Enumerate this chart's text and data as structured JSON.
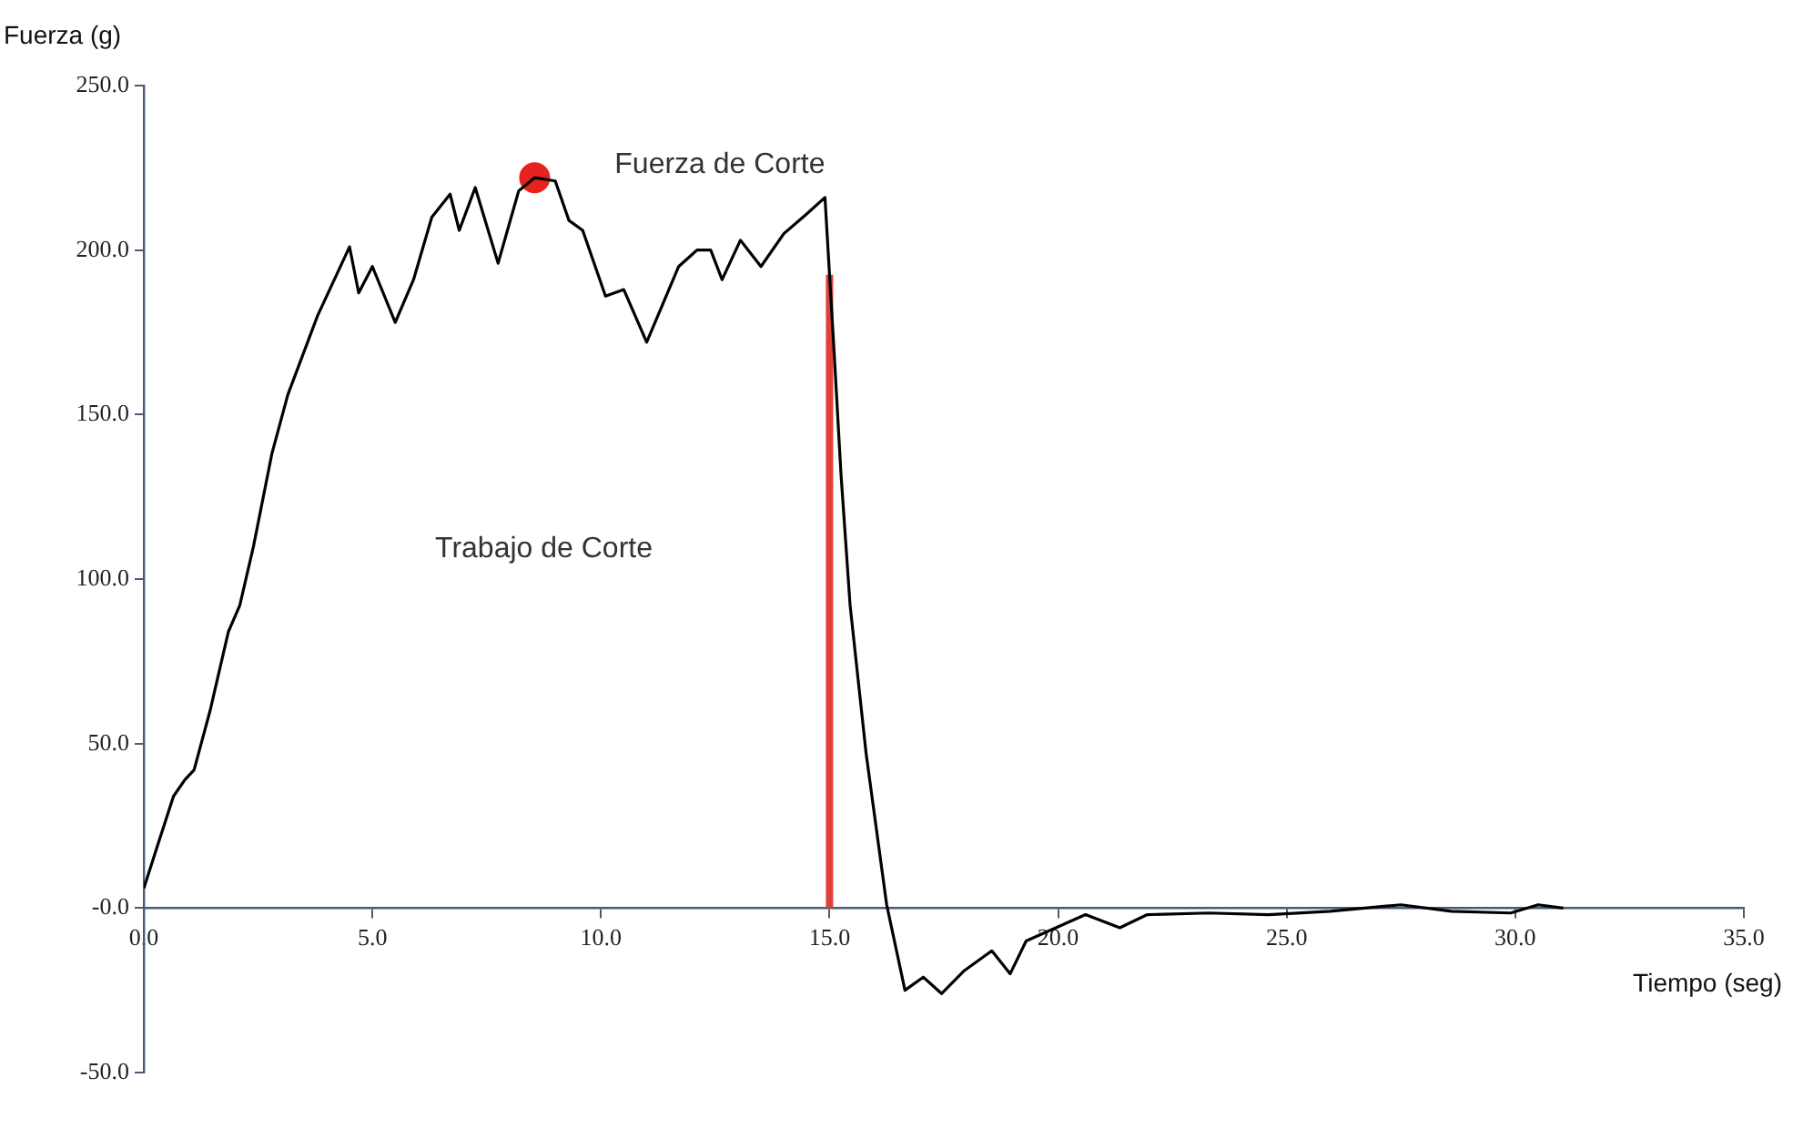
{
  "chart_data": {
    "type": "line",
    "xlabel": "Tiempo (seg)",
    "ylabel": "Fuerza (g)",
    "xlim": [
      0,
      35
    ],
    "ylim": [
      -50,
      250
    ],
    "xticks": [
      {
        "value": 0,
        "label": "0.0"
      },
      {
        "value": 5,
        "label": "5.0"
      },
      {
        "value": 10,
        "label": "10.0"
      },
      {
        "value": 15,
        "label": "15.0"
      },
      {
        "value": 20,
        "label": "20.0"
      },
      {
        "value": 25,
        "label": "25.0"
      },
      {
        "value": 30,
        "label": "30.0"
      },
      {
        "value": 35,
        "label": "35.0"
      }
    ],
    "yticks": [
      {
        "value": -50,
        "label": "-50.0"
      },
      {
        "value": 0,
        "label": "-0.0"
      },
      {
        "value": 50,
        "label": "50.0"
      },
      {
        "value": 100,
        "label": "100.0"
      },
      {
        "value": 150,
        "label": "150.0"
      },
      {
        "value": 200,
        "label": "200.0"
      },
      {
        "value": 250,
        "label": "250.0"
      }
    ],
    "grid": false,
    "legend": false,
    "marker": "none",
    "line_style": "solid",
    "series": [
      {
        "color": "#000000",
        "x": [
          0,
          0.3,
          0.65,
          0.9,
          1.1,
          1.45,
          1.85,
          2.1,
          2.4,
          2.8,
          3.15,
          3.8,
          4.5,
          4.7,
          5.0,
          5.5,
          5.9,
          6.3,
          6.7,
          6.9,
          7.25,
          7.75,
          8.2,
          8.55,
          9.0,
          9.3,
          9.6,
          10.1,
          10.5,
          11.0,
          11.7,
          12.1,
          12.4,
          12.65,
          13.05,
          13.5,
          14.0,
          14.5,
          14.9,
          15.1,
          15.25,
          15.45,
          15.8,
          16.25,
          16.65,
          17.05,
          17.45,
          17.95,
          18.55,
          18.95,
          19.3,
          19.95,
          20.6,
          21.35,
          21.95,
          23.3,
          24.6,
          25.95,
          27.5,
          28.6,
          29.9,
          30.5,
          31.05
        ],
        "values": [
          6,
          19,
          34,
          39,
          42,
          60,
          84,
          92,
          110,
          138,
          156,
          180,
          201,
          187,
          195,
          178,
          191,
          210,
          217,
          206,
          219,
          196,
          218,
          222,
          221,
          209,
          206,
          186,
          188,
          172,
          195,
          200,
          200,
          191,
          203,
          195,
          205,
          211,
          216,
          169,
          132,
          92,
          47,
          1,
          -25,
          -21,
          -26,
          -19,
          -13,
          -20,
          -10,
          -6,
          -2,
          -6,
          -2,
          -1.5,
          -2,
          -1,
          1,
          -1,
          -1.5,
          1,
          0
        ]
      },
      {
        "type": "scatter",
        "color": "#e8221c",
        "marker": "circle",
        "x": [
          8.55
        ],
        "values": [
          222
        ]
      }
    ],
    "ref_lines": [
      {
        "axis": "x",
        "value": 15,
        "color": "#e0403a"
      }
    ],
    "annotations": [
      "Fuerza de Corte",
      "Trabajo de Corte"
    ]
  }
}
